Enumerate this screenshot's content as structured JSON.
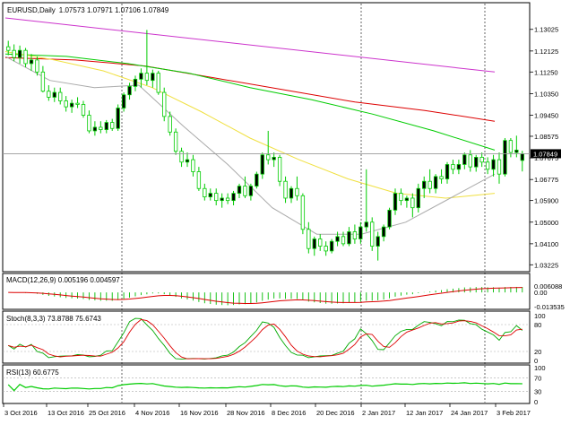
{
  "chart_data": {
    "type": "candlestick",
    "symbol_label": "EURUSD,Daily",
    "ohlc_label": "1.07573 1.07971 1.07106 1.07849",
    "price_axis": {
      "range": [
        1.0305,
        1.1365
      ],
      "ticks": [
        "1.13025",
        "1.12125",
        "1.11250",
        "1.10350",
        "1.09450",
        "1.08575",
        "1.07675",
        "1.06775",
        "1.05900",
        "1.05000",
        "1.04100",
        "1.03225"
      ],
      "current_price": "1.07849",
      "current_value": 1.07849
    },
    "candles": [
      {
        "o": 1.123,
        "h": 1.1255,
        "l": 1.1195,
        "c": 1.1215
      },
      {
        "o": 1.1215,
        "h": 1.124,
        "l": 1.117,
        "c": 1.1185
      },
      {
        "o": 1.1185,
        "h": 1.1235,
        "l": 1.116,
        "c": 1.1215
      },
      {
        "o": 1.1215,
        "h": 1.1225,
        "l": 1.1145,
        "c": 1.116
      },
      {
        "o": 1.116,
        "h": 1.12,
        "l": 1.113,
        "c": 1.1175
      },
      {
        "o": 1.1175,
        "h": 1.119,
        "l": 1.111,
        "c": 1.1125
      },
      {
        "o": 1.1125,
        "h": 1.115,
        "l": 1.104,
        "c": 1.1045
      },
      {
        "o": 1.1045,
        "h": 1.107,
        "l": 1.1005,
        "c": 1.102
      },
      {
        "o": 1.102,
        "h": 1.106,
        "l": 1.1,
        "c": 1.104
      },
      {
        "o": 1.104,
        "h": 1.106,
        "l": 1.099,
        "c": 1.1005
      },
      {
        "o": 1.1005,
        "h": 1.1025,
        "l": 1.096,
        "c": 1.098
      },
      {
        "o": 1.098,
        "h": 1.101,
        "l": 1.0955,
        "c": 1.0995
      },
      {
        "o": 1.0995,
        "h": 1.102,
        "l": 1.0975,
        "c": 1.099
      },
      {
        "o": 1.099,
        "h": 1.1005,
        "l": 1.0935,
        "c": 1.0945
      },
      {
        "o": 1.0945,
        "h": 1.0965,
        "l": 1.087,
        "c": 1.088
      },
      {
        "o": 1.088,
        "h": 1.092,
        "l": 1.086,
        "c": 1.0895
      },
      {
        "o": 1.0895,
        "h": 1.092,
        "l": 1.087,
        "c": 1.0885
      },
      {
        "o": 1.0885,
        "h": 1.0925,
        "l": 1.087,
        "c": 1.0915
      },
      {
        "o": 1.0915,
        "h": 1.093,
        "l": 1.088,
        "c": 1.089
      },
      {
        "o": 1.089,
        "h": 1.099,
        "l": 1.088,
        "c": 1.0975
      },
      {
        "o": 1.0975,
        "h": 1.104,
        "l": 1.096,
        "c": 1.103
      },
      {
        "o": 1.103,
        "h": 1.108,
        "l": 1.101,
        "c": 1.1065
      },
      {
        "o": 1.1065,
        "h": 1.111,
        "l": 1.1045,
        "c": 1.1095
      },
      {
        "o": 1.1095,
        "h": 1.114,
        "l": 1.106,
        "c": 1.112
      },
      {
        "o": 1.112,
        "h": 1.13,
        "l": 1.107,
        "c": 1.109
      },
      {
        "o": 1.109,
        "h": 1.1135,
        "l": 1.106,
        "c": 1.112
      },
      {
        "o": 1.112,
        "h": 1.113,
        "l": 1.103,
        "c": 1.104
      },
      {
        "o": 1.104,
        "h": 1.106,
        "l": 1.092,
        "c": 1.094
      },
      {
        "o": 1.094,
        "h": 1.096,
        "l": 1.086,
        "c": 1.0875
      },
      {
        "o": 1.0875,
        "h": 1.089,
        "l": 1.078,
        "c": 1.0795
      },
      {
        "o": 1.0795,
        "h": 1.081,
        "l": 1.073,
        "c": 1.075
      },
      {
        "o": 1.075,
        "h": 1.079,
        "l": 1.073,
        "c": 1.076
      },
      {
        "o": 1.076,
        "h": 1.078,
        "l": 1.069,
        "c": 1.071
      },
      {
        "o": 1.071,
        "h": 1.073,
        "l": 1.063,
        "c": 1.064
      },
      {
        "o": 1.064,
        "h": 1.066,
        "l": 1.059,
        "c": 1.0605
      },
      {
        "o": 1.0605,
        "h": 1.064,
        "l": 1.059,
        "c": 1.062
      },
      {
        "o": 1.062,
        "h": 1.064,
        "l": 1.057,
        "c": 1.059
      },
      {
        "o": 1.059,
        "h": 1.062,
        "l": 1.056,
        "c": 1.06
      },
      {
        "o": 1.06,
        "h": 1.062,
        "l": 1.0575,
        "c": 1.059
      },
      {
        "o": 1.059,
        "h": 1.063,
        "l": 1.057,
        "c": 1.062
      },
      {
        "o": 1.062,
        "h": 1.066,
        "l": 1.06,
        "c": 1.065
      },
      {
        "o": 1.065,
        "h": 1.069,
        "l": 1.06,
        "c": 1.061
      },
      {
        "o": 1.061,
        "h": 1.066,
        "l": 1.059,
        "c": 1.065
      },
      {
        "o": 1.065,
        "h": 1.071,
        "l": 1.064,
        "c": 1.07
      },
      {
        "o": 1.07,
        "h": 1.079,
        "l": 1.068,
        "c": 1.078
      },
      {
        "o": 1.078,
        "h": 1.088,
        "l": 1.074,
        "c": 1.076
      },
      {
        "o": 1.076,
        "h": 1.079,
        "l": 1.073,
        "c": 1.077
      },
      {
        "o": 1.077,
        "h": 1.078,
        "l": 1.065,
        "c": 1.067
      },
      {
        "o": 1.067,
        "h": 1.069,
        "l": 1.058,
        "c": 1.06
      },
      {
        "o": 1.06,
        "h": 1.065,
        "l": 1.058,
        "c": 1.064
      },
      {
        "o": 1.064,
        "h": 1.069,
        "l": 1.059,
        "c": 1.061
      },
      {
        "o": 1.061,
        "h": 1.062,
        "l": 1.045,
        "c": 1.047
      },
      {
        "o": 1.047,
        "h": 1.05,
        "l": 1.037,
        "c": 1.039
      },
      {
        "o": 1.039,
        "h": 1.044,
        "l": 1.036,
        "c": 1.043
      },
      {
        "o": 1.043,
        "h": 1.045,
        "l": 1.038,
        "c": 1.04
      },
      {
        "o": 1.04,
        "h": 1.042,
        "l": 1.036,
        "c": 1.038
      },
      {
        "o": 1.038,
        "h": 1.043,
        "l": 1.037,
        "c": 1.042
      },
      {
        "o": 1.042,
        "h": 1.046,
        "l": 1.04,
        "c": 1.044
      },
      {
        "o": 1.044,
        "h": 1.046,
        "l": 1.04,
        "c": 1.041
      },
      {
        "o": 1.041,
        "h": 1.048,
        "l": 1.04,
        "c": 1.046
      },
      {
        "o": 1.046,
        "h": 1.049,
        "l": 1.041,
        "c": 1.043
      },
      {
        "o": 1.043,
        "h": 1.05,
        "l": 1.041,
        "c": 1.048
      },
      {
        "o": 1.048,
        "h": 1.072,
        "l": 1.046,
        "c": 1.05
      },
      {
        "o": 1.05,
        "h": 1.052,
        "l": 1.038,
        "c": 1.04
      },
      {
        "o": 1.04,
        "h": 1.046,
        "l": 1.034,
        "c": 1.044
      },
      {
        "o": 1.044,
        "h": 1.049,
        "l": 1.042,
        "c": 1.048
      },
      {
        "o": 1.048,
        "h": 1.056,
        "l": 1.047,
        "c": 1.055
      },
      {
        "o": 1.055,
        "h": 1.064,
        "l": 1.053,
        "c": 1.062
      },
      {
        "o": 1.062,
        "h": 1.064,
        "l": 1.057,
        "c": 1.059
      },
      {
        "o": 1.059,
        "h": 1.061,
        "l": 1.056,
        "c": 1.06
      },
      {
        "o": 1.06,
        "h": 1.062,
        "l": 1.052,
        "c": 1.056
      },
      {
        "o": 1.056,
        "h": 1.066,
        "l": 1.054,
        "c": 1.064
      },
      {
        "o": 1.064,
        "h": 1.069,
        "l": 1.06,
        "c": 1.067
      },
      {
        "o": 1.067,
        "h": 1.072,
        "l": 1.062,
        "c": 1.064
      },
      {
        "o": 1.064,
        "h": 1.07,
        "l": 1.062,
        "c": 1.069
      },
      {
        "o": 1.069,
        "h": 1.072,
        "l": 1.066,
        "c": 1.068
      },
      {
        "o": 1.068,
        "h": 1.075,
        "l": 1.066,
        "c": 1.074
      },
      {
        "o": 1.074,
        "h": 1.076,
        "l": 1.07,
        "c": 1.072
      },
      {
        "o": 1.072,
        "h": 1.076,
        "l": 1.07,
        "c": 1.074
      },
      {
        "o": 1.074,
        "h": 1.079,
        "l": 1.072,
        "c": 1.078
      },
      {
        "o": 1.078,
        "h": 1.08,
        "l": 1.071,
        "c": 1.073
      },
      {
        "o": 1.073,
        "h": 1.078,
        "l": 1.071,
        "c": 1.077
      },
      {
        "o": 1.077,
        "h": 1.079,
        "l": 1.073,
        "c": 1.075
      },
      {
        "o": 1.075,
        "h": 1.077,
        "l": 1.07,
        "c": 1.072
      },
      {
        "o": 1.072,
        "h": 1.078,
        "l": 1.069,
        "c": 1.076
      },
      {
        "o": 1.076,
        "h": 1.079,
        "l": 1.066,
        "c": 1.07
      },
      {
        "o": 1.07,
        "h": 1.085,
        "l": 1.069,
        "c": 1.084
      },
      {
        "o": 1.084,
        "h": 1.085,
        "l": 1.077,
        "c": 1.079
      },
      {
        "o": 1.079,
        "h": 1.086,
        "l": 1.077,
        "c": 1.08
      },
      {
        "o": 1.0757,
        "h": 1.0797,
        "l": 1.0711,
        "c": 1.0785
      }
    ],
    "moving_averages": [
      {
        "color": "#cc33cc",
        "values": [
          1.135,
          1.1125
        ]
      },
      {
        "color": "#dd0000",
        "values": [
          1.1185,
          1.1175,
          1.115,
          1.11,
          1.105,
          1.1,
          1.0965,
          1.092
        ]
      },
      {
        "color": "#00cc00",
        "values": [
          1.12,
          1.119,
          1.116,
          1.112,
          1.106,
          1.101,
          1.095,
          1.088,
          1.08
        ]
      },
      {
        "color": "#f0e040",
        "values": [
          1.121,
          1.1175,
          1.113,
          1.106,
          1.096,
          1.085,
          1.076,
          1.068,
          1.062,
          1.06,
          1.062
        ]
      },
      {
        "color": "#aaaaaa",
        "values": [
          1.119,
          1.109,
          1.106,
          1.107,
          1.09,
          1.074,
          1.056,
          1.045,
          1.045,
          1.05,
          1.06,
          1.07
        ]
      }
    ],
    "time_axis": [
      "3 Oct 2016",
      "13 Oct 2016",
      "25 Oct 2016",
      "4 Nov 2016",
      "16 Nov 2016",
      "28 Nov 2016",
      "8 Dec 2016",
      "20 Dec 2016",
      "2 Jan 2017",
      "12 Jan 2017",
      "24 Jan 2017",
      "3 Feb 2017"
    ],
    "macd": {
      "label": "MACD(12,26,9) 0.005196 0.004597",
      "axis_ticks": [
        "0.006088",
        "0.00",
        "-0.013535"
      ],
      "range": [
        -0.0145,
        0.007
      ]
    },
    "stochastic": {
      "label": "Stoch(8,3,3) 73.8788 75.6743",
      "axis_ticks": [
        "100",
        "80",
        "20",
        "0"
      ],
      "main_color": "#00aa00",
      "signal_color": "#dd0000"
    },
    "rsi": {
      "label": "RSI(13) 60.6775",
      "axis_ticks": [
        "100",
        "70",
        "30",
        "0"
      ],
      "color": "#00cc00"
    }
  }
}
